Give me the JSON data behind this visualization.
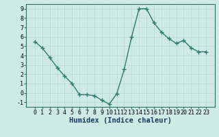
{
  "x": [
    0,
    1,
    2,
    3,
    4,
    5,
    6,
    7,
    8,
    9,
    10,
    11,
    12,
    13,
    14,
    15,
    16,
    17,
    18,
    19,
    20,
    21,
    22,
    23
  ],
  "y": [
    5.5,
    4.8,
    3.8,
    2.7,
    1.8,
    1.0,
    -0.2,
    -0.2,
    -0.3,
    -0.8,
    -1.2,
    -0.1,
    2.5,
    6.0,
    9.0,
    9.0,
    7.5,
    6.5,
    5.8,
    5.3,
    5.6,
    4.8,
    4.4,
    4.4
  ],
  "line_color": "#2d7a6a",
  "marker": "+",
  "markersize": 4,
  "linewidth": 1.0,
  "xlabel": "Humidex (Indice chaleur)",
  "xlabel_fontsize": 7.5,
  "xlabel_color": "#1a3a5e",
  "ylim": [
    -1.5,
    9.5
  ],
  "yticks": [
    -1,
    0,
    1,
    2,
    3,
    4,
    5,
    6,
    7,
    8,
    9
  ],
  "xticks": [
    0,
    1,
    2,
    3,
    4,
    5,
    6,
    7,
    8,
    9,
    10,
    11,
    12,
    13,
    14,
    15,
    16,
    17,
    18,
    19,
    20,
    21,
    22,
    23
  ],
  "bg_color": "#ceeae4",
  "grid_color": "#b8d8d0",
  "tick_fontsize": 6,
  "spine_color": "#2d6e5e"
}
